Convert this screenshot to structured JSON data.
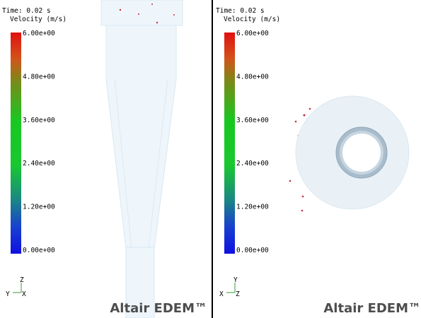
{
  "panels": [
    {
      "time": "Time: 0.02 s",
      "legend_title": "Velocity (m/s)",
      "scale_labels": [
        "6.00e+00",
        "4.80e+00",
        "3.60e+00",
        "2.40e+00",
        "1.20e+00",
        "0.00e+00"
      ],
      "axes": {
        "up": "Z",
        "left": "Y",
        "right": "X"
      },
      "logo": "Altair EDEM™"
    },
    {
      "time": "Time: 0.02 s",
      "legend_title": "Velocity (m/s)",
      "scale_labels": [
        "6.00e+00",
        "4.80e+00",
        "3.60e+00",
        "2.40e+00",
        "1.20e+00",
        "0.00e+00"
      ],
      "axes": {
        "up": "Y",
        "left": "X",
        "right": "Z"
      },
      "logo": "Altair EDEM™"
    }
  ]
}
